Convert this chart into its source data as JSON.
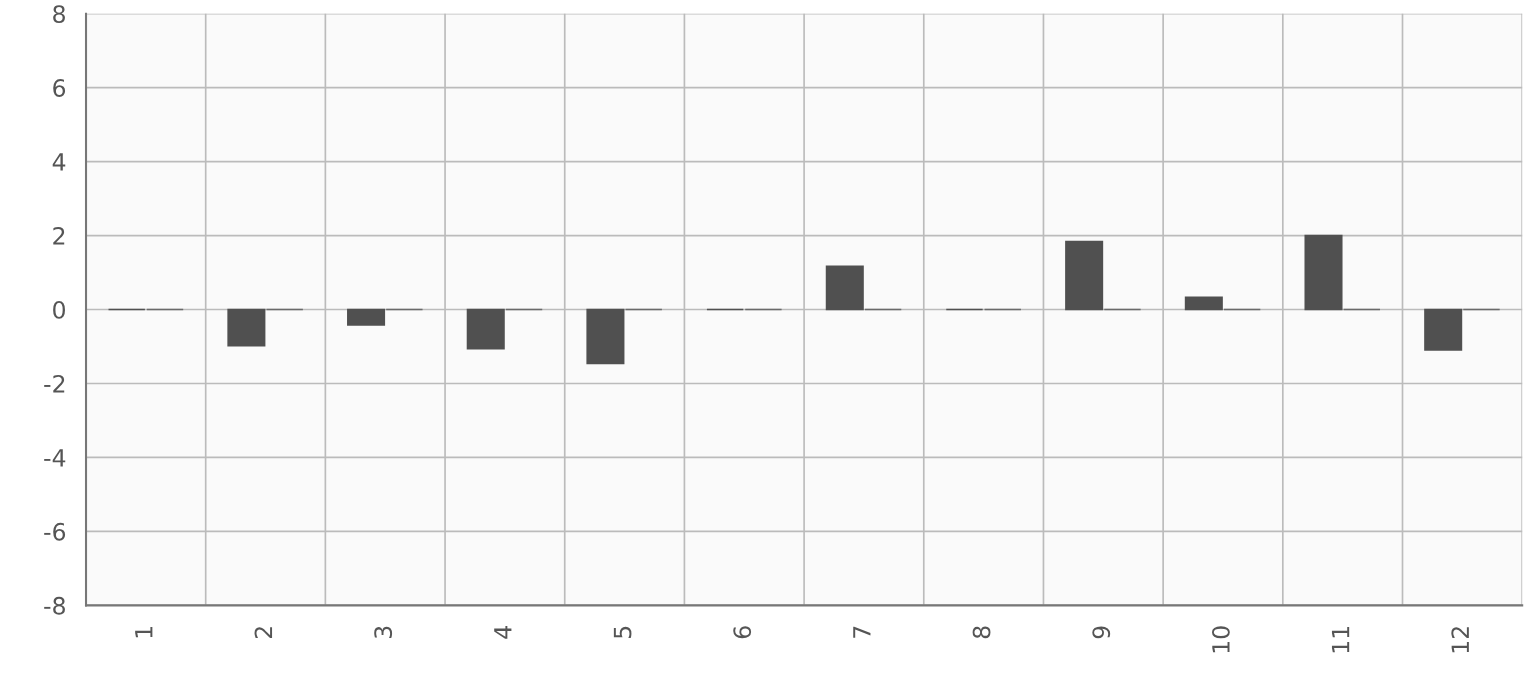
{
  "chart_data": {
    "type": "bar",
    "categories": [
      "1",
      "2",
      "3",
      "4",
      "5",
      "6",
      "7",
      "8",
      "9",
      "10",
      "11",
      "12"
    ],
    "series": [
      {
        "color": "#505050",
        "values": [
          0,
          -0.98,
          -0.42,
          -1.06,
          -1.46,
          0,
          1.17,
          0,
          1.84,
          0.33,
          2.0,
          -1.09
        ]
      },
      {
        "color": "#6a6a6a",
        "values": [
          0,
          0,
          0,
          0,
          0,
          0,
          0,
          0,
          0,
          0,
          0,
          0
        ]
      }
    ],
    "ylim": [
      -8,
      8
    ],
    "yticks": [
      -8,
      -6,
      -4,
      -2,
      0,
      2,
      4,
      6,
      8
    ],
    "grid": true,
    "legend": false
  }
}
